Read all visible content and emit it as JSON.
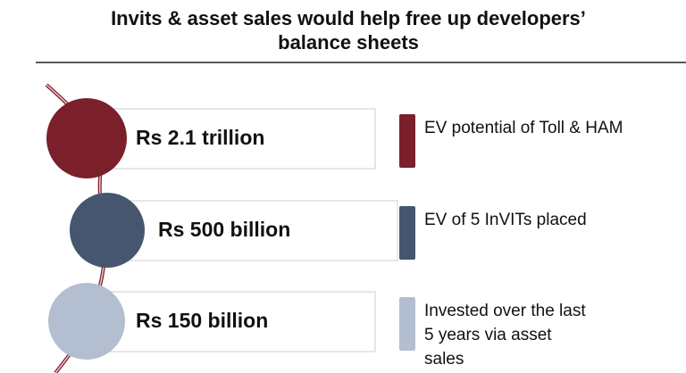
{
  "title": {
    "lines": [
      "Invits & asset sales would help free up developers’",
      "balance sheets"
    ]
  },
  "items": [
    {
      "value": "Rs 2.1 trillion",
      "color": "#7b1f2b",
      "label": [
        "EV potential of Toll & HAM"
      ]
    },
    {
      "value": "Rs 500 billion",
      "color": "#46566e",
      "label": [
        "EV of 5 InVITs placed"
      ]
    },
    {
      "value": "Rs 150 billion",
      "color": "#b3bed0",
      "label": [
        "Invested over the last",
        "5 years via asset",
        "sales"
      ]
    }
  ]
}
